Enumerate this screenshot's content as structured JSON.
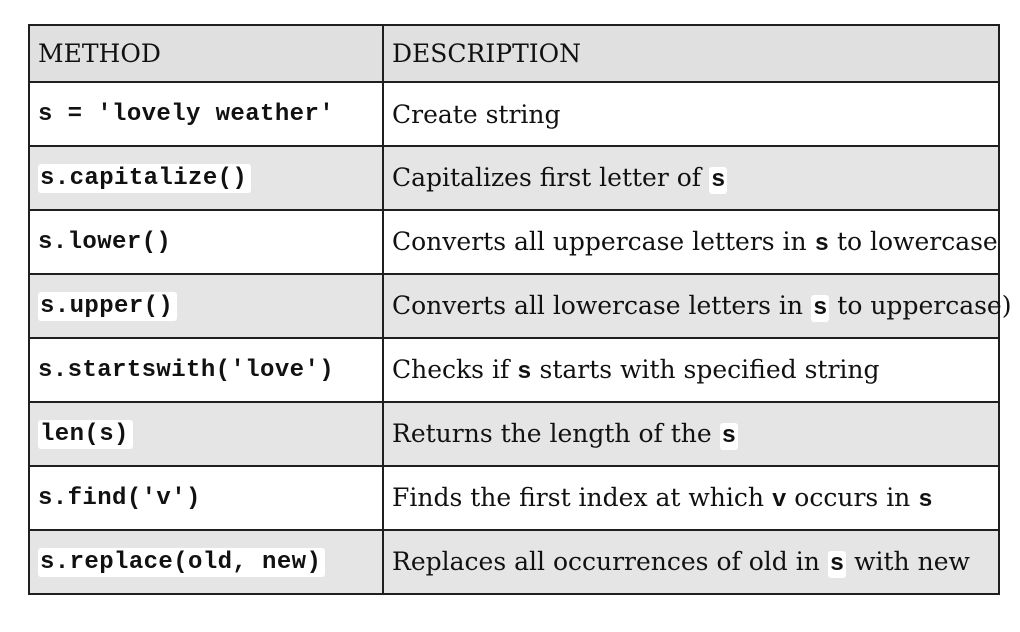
{
  "table": {
    "headers": {
      "method": "METHOD",
      "description": "DESCRIPTION"
    },
    "rows": [
      {
        "method": "s = 'lovely weather'",
        "desc": [
          "Create string"
        ]
      },
      {
        "method": "s.capitalize()",
        "desc": [
          "Capitalizes first letter of ",
          "s"
        ]
      },
      {
        "method": "s.lower()",
        "desc": [
          "Converts all uppercase letters in ",
          "s",
          " to lowercase"
        ]
      },
      {
        "method": "s.upper()",
        "desc": [
          "Converts all lowercase letters in ",
          "s",
          " to uppercase)"
        ]
      },
      {
        "method": "s.startswith('love')",
        "desc": [
          "Checks if ",
          "s",
          " starts with specified string"
        ]
      },
      {
        "method": "len(s)",
        "desc": [
          "Returns the length of the ",
          "s"
        ]
      },
      {
        "method": "s.find('v')",
        "desc": [
          "Finds the first index at which ",
          "v",
          " occurs in ",
          "s"
        ]
      },
      {
        "method": "s.replace(old, new)",
        "desc": [
          "Replaces all occurrences of old in ",
          "s",
          " with new"
        ]
      }
    ]
  }
}
